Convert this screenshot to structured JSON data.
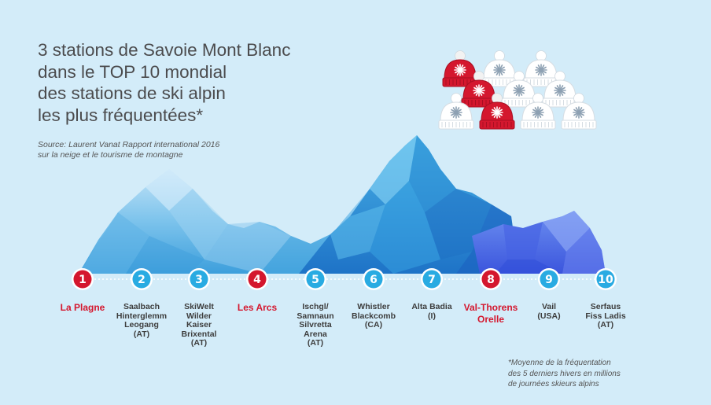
{
  "title_lines": [
    "3 stations de Savoie Mont Blanc",
    "dans le TOP 10 mondial",
    "des stations de ski alpin",
    "les plus fréquentées*"
  ],
  "source_lines": [
    "Source: Laurent Vanat Rapport international 2016",
    "sur la neige et le tourisme de montagne"
  ],
  "footnote_lines": [
    "*Moyenne de la fréquentation",
    "des 5 derniers hivers en millions",
    "de journées skieurs alpins"
  ],
  "colors": {
    "highlight": "#d4172e",
    "standard": "#29abe2",
    "text": "#4b4b4d",
    "background": "#d3ecf9"
  },
  "hats": {
    "total": 10,
    "red": 3,
    "icon": "snowflake-beanie-icon"
  },
  "stations": [
    {
      "rank": "1",
      "lines": [
        "La Plagne"
      ],
      "highlight": true
    },
    {
      "rank": "2",
      "lines": [
        "Saalbach",
        "Hinterglemm",
        "Leogang",
        "(AT)"
      ],
      "highlight": false
    },
    {
      "rank": "3",
      "lines": [
        "SkiWelt",
        "Wilder",
        "Kaiser",
        "Brixental",
        "(AT)"
      ],
      "highlight": false
    },
    {
      "rank": "4",
      "lines": [
        "Les Arcs"
      ],
      "highlight": true
    },
    {
      "rank": "5",
      "lines": [
        "Ischgl/",
        "Samnaun",
        "Silvretta",
        "Arena",
        "(AT)"
      ],
      "highlight": false
    },
    {
      "rank": "6",
      "lines": [
        "Whistler",
        "Blackcomb",
        "(CA)"
      ],
      "highlight": false
    },
    {
      "rank": "7",
      "lines": [
        "Alta Badia",
        "(I)"
      ],
      "highlight": false
    },
    {
      "rank": "8",
      "lines": [
        "Val-Thorens",
        "Orelle"
      ],
      "highlight": true
    },
    {
      "rank": "9",
      "lines": [
        "Vail",
        "(USA)"
      ],
      "highlight": false
    },
    {
      "rank": "10",
      "lines": [
        "Serfaus",
        "Fiss Ladis",
        "(AT)"
      ],
      "highlight": false
    }
  ]
}
